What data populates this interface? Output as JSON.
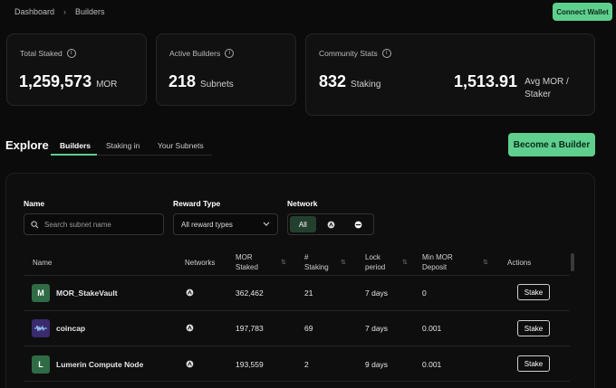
{
  "breadcrumb": {
    "items": [
      "Dashboard",
      "Builders"
    ],
    "separator": "›"
  },
  "header": {
    "connect_label": "Connect Wallet"
  },
  "stats": {
    "total_staked": {
      "label": "Total Staked",
      "value": "1,259,573",
      "unit": "MOR"
    },
    "active_builders": {
      "label": "Active Builders",
      "value": "218",
      "unit": "Subnets"
    },
    "community": {
      "label": "Community Stats",
      "staking_value": "832",
      "staking_unit": "Staking",
      "avg_value": "1,513.91",
      "avg_unit_line1": "Avg MOR /",
      "avg_unit_line2": "Staker"
    }
  },
  "explore": {
    "title": "Explore",
    "tabs": [
      "Builders",
      "Staking in",
      "Your Subnets"
    ],
    "become_label": "Become a Builder"
  },
  "filters": {
    "name_label": "Name",
    "search_placeholder": "Search subnet name",
    "reward_label": "Reward Type",
    "reward_value": "All reward types",
    "network_label": "Network",
    "network_all": "All"
  },
  "table": {
    "headers": {
      "name": "Name",
      "networks": "Networks",
      "mor_staked_1": "MOR",
      "mor_staked_2": "Staked",
      "staking_1": "#",
      "staking_2": "Staking",
      "lock_1": "Lock",
      "lock_2": "period",
      "min_1": "Min MOR",
      "min_2": "Deposit",
      "actions": "Actions"
    },
    "rows": [
      {
        "avatar": "M",
        "avatar_color": "#2f6b45",
        "name": "MOR_StakeVault",
        "staked": "362,462",
        "staking": "21",
        "lock": "7 days",
        "min": "0",
        "action": "Stake"
      },
      {
        "avatar": "",
        "avatar_color": "#3a2a6e",
        "name": "coincap",
        "staked": "197,783",
        "staking": "69",
        "lock": "7 days",
        "min": "0.001",
        "action": "Stake"
      },
      {
        "avatar": "L",
        "avatar_color": "#2f6b45",
        "name": "Lumerin Compute Node",
        "staked": "193,559",
        "staking": "2",
        "lock": "9 days",
        "min": "0.001",
        "action": "Stake"
      }
    ]
  }
}
